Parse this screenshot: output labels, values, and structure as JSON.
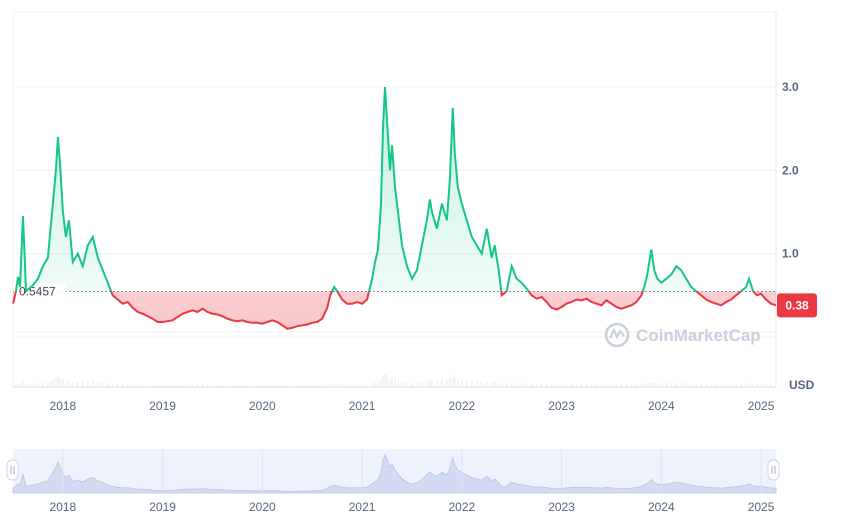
{
  "chart_data": {
    "type": "line",
    "currency": "USD",
    "baseline_value": 0.5457,
    "baseline_label": "0.5457",
    "current_price_label": "0.38",
    "watermark": "CoinMarketCap",
    "ylim": [
      -0.6,
      3.9
    ],
    "y_ticks": [
      "3.0",
      "2.0",
      "1.0"
    ],
    "y_tick_values": [
      3.0,
      2.0,
      1.0
    ],
    "x_ticks": [
      "2018",
      "2019",
      "2020",
      "2021",
      "2022",
      "2023",
      "2024",
      "2025"
    ],
    "x_tick_values": [
      2018.0,
      2019.0,
      2020.0,
      2021.0,
      2022.0,
      2023.0,
      2024.0,
      2025.0
    ],
    "xlim": [
      2017.5,
      2025.15
    ],
    "colors": {
      "above": "#16c784",
      "below": "#ea3943",
      "grid": "#eff2f5",
      "baseline": "#a6b0c3",
      "navigator": "#eef2fd"
    },
    "series": [
      {
        "values": [
          [
            2017.5,
            0.4
          ],
          [
            2017.53,
            0.55
          ],
          [
            2017.55,
            0.72
          ],
          [
            2017.57,
            0.6
          ],
          [
            2017.6,
            1.45
          ],
          [
            2017.63,
            0.55
          ],
          [
            2017.66,
            0.58
          ],
          [
            2017.7,
            0.62
          ],
          [
            2017.75,
            0.7
          ],
          [
            2017.8,
            0.85
          ],
          [
            2017.85,
            0.95
          ],
          [
            2017.88,
            1.35
          ],
          [
            2017.9,
            1.6
          ],
          [
            2017.93,
            2.0
          ],
          [
            2017.95,
            2.4
          ],
          [
            2017.97,
            2.1
          ],
          [
            2018.0,
            1.5
          ],
          [
            2018.03,
            1.2
          ],
          [
            2018.06,
            1.4
          ],
          [
            2018.1,
            0.9
          ],
          [
            2018.15,
            1.0
          ],
          [
            2018.2,
            0.85
          ],
          [
            2018.25,
            1.1
          ],
          [
            2018.3,
            1.2
          ],
          [
            2018.35,
            0.95
          ],
          [
            2018.4,
            0.8
          ],
          [
            2018.45,
            0.65
          ],
          [
            2018.5,
            0.5
          ],
          [
            2018.55,
            0.45
          ],
          [
            2018.6,
            0.4
          ],
          [
            2018.65,
            0.42
          ],
          [
            2018.7,
            0.35
          ],
          [
            2018.75,
            0.3
          ],
          [
            2018.8,
            0.28
          ],
          [
            2018.85,
            0.25
          ],
          [
            2018.9,
            0.22
          ],
          [
            2018.95,
            0.18
          ],
          [
            2019.0,
            0.18
          ],
          [
            2019.05,
            0.19
          ],
          [
            2019.1,
            0.2
          ],
          [
            2019.15,
            0.24
          ],
          [
            2019.2,
            0.28
          ],
          [
            2019.25,
            0.3
          ],
          [
            2019.3,
            0.32
          ],
          [
            2019.35,
            0.3
          ],
          [
            2019.4,
            0.34
          ],
          [
            2019.45,
            0.3
          ],
          [
            2019.5,
            0.28
          ],
          [
            2019.55,
            0.27
          ],
          [
            2019.6,
            0.25
          ],
          [
            2019.65,
            0.22
          ],
          [
            2019.7,
            0.2
          ],
          [
            2019.75,
            0.19
          ],
          [
            2019.8,
            0.2
          ],
          [
            2019.85,
            0.18
          ],
          [
            2019.9,
            0.17
          ],
          [
            2019.95,
            0.17
          ],
          [
            2020.0,
            0.16
          ],
          [
            2020.05,
            0.18
          ],
          [
            2020.1,
            0.2
          ],
          [
            2020.15,
            0.18
          ],
          [
            2020.2,
            0.14
          ],
          [
            2020.25,
            0.1
          ],
          [
            2020.3,
            0.11
          ],
          [
            2020.35,
            0.13
          ],
          [
            2020.4,
            0.14
          ],
          [
            2020.45,
            0.15
          ],
          [
            2020.5,
            0.17
          ],
          [
            2020.55,
            0.18
          ],
          [
            2020.6,
            0.22
          ],
          [
            2020.65,
            0.35
          ],
          [
            2020.68,
            0.5
          ],
          [
            2020.72,
            0.6
          ],
          [
            2020.75,
            0.55
          ],
          [
            2020.8,
            0.45
          ],
          [
            2020.85,
            0.4
          ],
          [
            2020.9,
            0.4
          ],
          [
            2020.95,
            0.42
          ],
          [
            2021.0,
            0.4
          ],
          [
            2021.05,
            0.45
          ],
          [
            2021.1,
            0.7
          ],
          [
            2021.13,
            0.9
          ],
          [
            2021.16,
            1.05
          ],
          [
            2021.19,
            1.6
          ],
          [
            2021.21,
            2.5
          ],
          [
            2021.23,
            3.0
          ],
          [
            2021.25,
            2.6
          ],
          [
            2021.28,
            2.0
          ],
          [
            2021.3,
            2.3
          ],
          [
            2021.33,
            1.8
          ],
          [
            2021.36,
            1.5
          ],
          [
            2021.4,
            1.1
          ],
          [
            2021.45,
            0.85
          ],
          [
            2021.5,
            0.7
          ],
          [
            2021.55,
            0.8
          ],
          [
            2021.6,
            1.1
          ],
          [
            2021.65,
            1.4
          ],
          [
            2021.68,
            1.65
          ],
          [
            2021.7,
            1.5
          ],
          [
            2021.75,
            1.3
          ],
          [
            2021.8,
            1.6
          ],
          [
            2021.85,
            1.4
          ],
          [
            2021.88,
            1.9
          ],
          [
            2021.91,
            2.75
          ],
          [
            2021.93,
            2.2
          ],
          [
            2021.96,
            1.8
          ],
          [
            2022.0,
            1.6
          ],
          [
            2022.05,
            1.4
          ],
          [
            2022.1,
            1.2
          ],
          [
            2022.15,
            1.1
          ],
          [
            2022.2,
            1.0
          ],
          [
            2022.25,
            1.3
          ],
          [
            2022.3,
            0.95
          ],
          [
            2022.33,
            1.1
          ],
          [
            2022.37,
            0.8
          ],
          [
            2022.4,
            0.5
          ],
          [
            2022.45,
            0.55
          ],
          [
            2022.5,
            0.85
          ],
          [
            2022.55,
            0.7
          ],
          [
            2022.6,
            0.65
          ],
          [
            2022.65,
            0.58
          ],
          [
            2022.7,
            0.5
          ],
          [
            2022.75,
            0.46
          ],
          [
            2022.8,
            0.48
          ],
          [
            2022.85,
            0.42
          ],
          [
            2022.9,
            0.35
          ],
          [
            2022.95,
            0.33
          ],
          [
            2023.0,
            0.36
          ],
          [
            2023.05,
            0.4
          ],
          [
            2023.1,
            0.42
          ],
          [
            2023.15,
            0.45
          ],
          [
            2023.2,
            0.44
          ],
          [
            2023.25,
            0.46
          ],
          [
            2023.3,
            0.42
          ],
          [
            2023.35,
            0.4
          ],
          [
            2023.4,
            0.38
          ],
          [
            2023.45,
            0.44
          ],
          [
            2023.5,
            0.4
          ],
          [
            2023.55,
            0.36
          ],
          [
            2023.6,
            0.34
          ],
          [
            2023.65,
            0.36
          ],
          [
            2023.7,
            0.38
          ],
          [
            2023.75,
            0.42
          ],
          [
            2023.8,
            0.5
          ],
          [
            2023.83,
            0.6
          ],
          [
            2023.86,
            0.75
          ],
          [
            2023.88,
            0.9
          ],
          [
            2023.9,
            1.05
          ],
          [
            2023.93,
            0.8
          ],
          [
            2023.96,
            0.7
          ],
          [
            2024.0,
            0.65
          ],
          [
            2024.05,
            0.7
          ],
          [
            2024.1,
            0.75
          ],
          [
            2024.15,
            0.85
          ],
          [
            2024.2,
            0.8
          ],
          [
            2024.25,
            0.7
          ],
          [
            2024.3,
            0.6
          ],
          [
            2024.35,
            0.55
          ],
          [
            2024.4,
            0.5
          ],
          [
            2024.45,
            0.45
          ],
          [
            2024.5,
            0.42
          ],
          [
            2024.55,
            0.4
          ],
          [
            2024.6,
            0.38
          ],
          [
            2024.65,
            0.42
          ],
          [
            2024.7,
            0.45
          ],
          [
            2024.75,
            0.5
          ],
          [
            2024.8,
            0.55
          ],
          [
            2024.85,
            0.6
          ],
          [
            2024.88,
            0.7
          ],
          [
            2024.92,
            0.55
          ],
          [
            2024.96,
            0.5
          ],
          [
            2025.0,
            0.52
          ],
          [
            2025.05,
            0.45
          ],
          [
            2025.1,
            0.4
          ],
          [
            2025.15,
            0.38
          ]
        ]
      }
    ]
  }
}
